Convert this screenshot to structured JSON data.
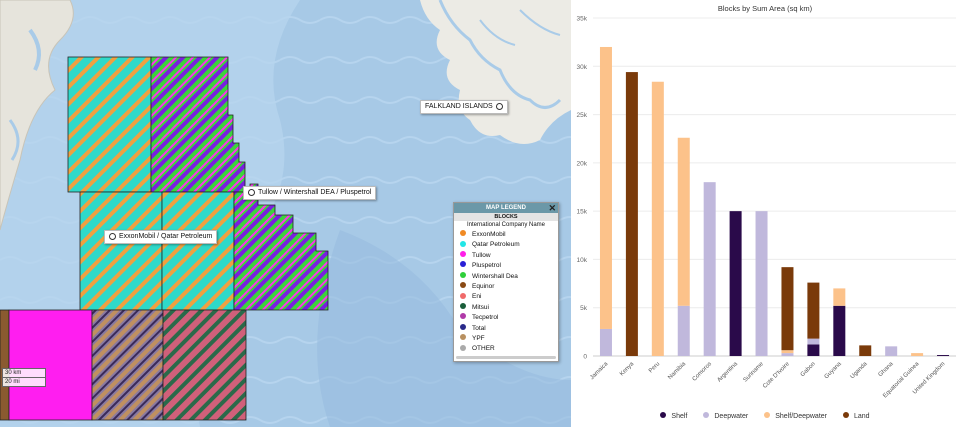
{
  "map": {
    "labels": {
      "falklands": "FALKLAND ISLANDS",
      "tullow": "Tullow / Wintershall DEA / Pluspetrol",
      "exxon": "ExxonMobil / Qatar Petroleum"
    },
    "scale": {
      "km": "30 km",
      "mi": "20 mi"
    },
    "legend": {
      "title": "MAP LEGEND",
      "subtitle": "BLOCKS",
      "column": "International Company Name",
      "close_icon": "✕",
      "items": [
        {
          "name": "ExxonMobil",
          "color": "#f08a24"
        },
        {
          "name": "Qatar Petroleum",
          "color": "#22e6e6"
        },
        {
          "name": "Tullow",
          "color": "#ff1fe8"
        },
        {
          "name": "Pluspetrol",
          "color": "#2a1fd6"
        },
        {
          "name": "Wintershall Dea",
          "color": "#2fcf3a"
        },
        {
          "name": "Equinor",
          "color": "#8a4a14"
        },
        {
          "name": "Eni",
          "color": "#f06a6a"
        },
        {
          "name": "Mitsui",
          "color": "#1a5e3a"
        },
        {
          "name": "Tecpetrol",
          "color": "#b03aa8"
        },
        {
          "name": "Total",
          "color": "#2a2a8a"
        },
        {
          "name": "YPF",
          "color": "#b89060"
        },
        {
          "name": "OTHER",
          "color": "#aaaaaa"
        }
      ]
    }
  },
  "chart_data": {
    "type": "bar",
    "stacked": true,
    "title": "Blocks by Sum Area (sq km)",
    "xlabel": "",
    "ylabel": "",
    "ylim": [
      0,
      35000
    ],
    "yticks": [
      "0",
      "5k",
      "10k",
      "15k",
      "20k",
      "25k",
      "30k",
      "35k"
    ],
    "categories": [
      "Jamaica",
      "Kenya",
      "Peru",
      "Namibia",
      "Comoros",
      "Argentina",
      "Suriname",
      "Cote D'Ivoire",
      "Gabon",
      "Guyana",
      "Uganda",
      "Ghana",
      "Equatorial Guinea",
      "United Kingdom"
    ],
    "series": [
      {
        "name": "Shelf",
        "color": "#2a0a4a",
        "values": [
          0,
          0,
          0,
          0,
          0,
          15000,
          0,
          0,
          1200,
          5200,
          0,
          0,
          0,
          100
        ]
      },
      {
        "name": "Deepwater",
        "color": "#c0b8dc",
        "values": [
          2800,
          0,
          0,
          5200,
          18000,
          0,
          15000,
          300,
          600,
          0,
          0,
          1000,
          0,
          0
        ]
      },
      {
        "name": "Shelf/Deepwater",
        "color": "#fcc28a",
        "values": [
          29200,
          0,
          28400,
          17400,
          0,
          0,
          0,
          300,
          0,
          1800,
          0,
          0,
          300,
          0
        ]
      },
      {
        "name": "Land",
        "color": "#7a3a0a",
        "values": [
          0,
          29400,
          0,
          0,
          0,
          0,
          0,
          8600,
          5800,
          0,
          1100,
          0,
          0,
          0
        ]
      }
    ],
    "legend_position": "bottom",
    "grid": true
  }
}
